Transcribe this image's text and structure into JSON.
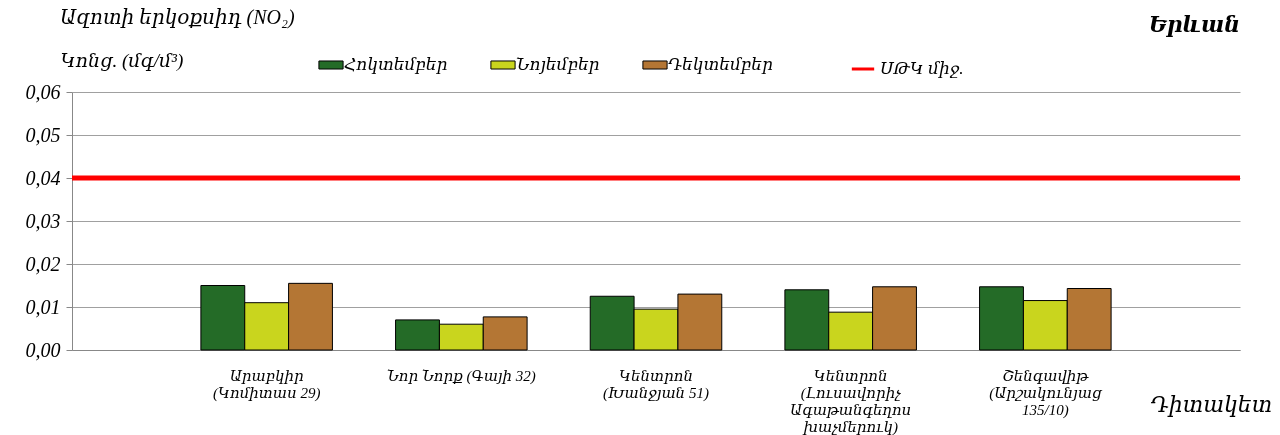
{
  "chart_data": {
    "type": "bar",
    "title": "Ազոտի երկօքսիդ (NO₂)",
    "subtitle": "Երևան",
    "ylabel": "Կոնց. (մգ/մ³)",
    "xlabel": "Դիտակետ",
    "categories": [
      "Արաբկիր (Կոմիտաս 29)",
      "Նոր Նորք (Գայի 32)",
      "Կենտրոն (Խանջյան 51)",
      "Կենտրոն (Լուսավորիչ Ագաթանգեղոս խաչմերուկ)",
      "Շենգավիթ (Արշակունյաց 135/10)"
    ],
    "series": [
      {
        "name": "Հոկտեմբեր",
        "color": "#246b27",
        "values": [
          0.015,
          0.007,
          0.0125,
          0.014,
          0.0147
        ]
      },
      {
        "name": "Նոյեմբեր",
        "color": "#c9d51e",
        "values": [
          0.011,
          0.006,
          0.0095,
          0.0088,
          0.0115
        ]
      },
      {
        "name": "Դեկտեմբեր",
        "color": "#b47634",
        "values": [
          0.0155,
          0.0077,
          0.013,
          0.0147,
          0.0143
        ]
      }
    ],
    "ylim": [
      0,
      0.06
    ],
    "yticks": [
      {
        "value": 0,
        "label": "0,00"
      },
      {
        "value": 0.01,
        "label": "0,01"
      },
      {
        "value": 0.02,
        "label": "0,02"
      },
      {
        "value": 0.03,
        "label": "0,03"
      },
      {
        "value": 0.04,
        "label": "0,04"
      },
      {
        "value": 0.05,
        "label": "0,05"
      },
      {
        "value": 0.06,
        "label": "0,06"
      }
    ],
    "ref_lines": [
      {
        "axis": "y",
        "value": 0.04,
        "label": "ՍԹԿ միջ.",
        "color": "#ff0000"
      }
    ],
    "grid": "y",
    "legend": "top"
  }
}
